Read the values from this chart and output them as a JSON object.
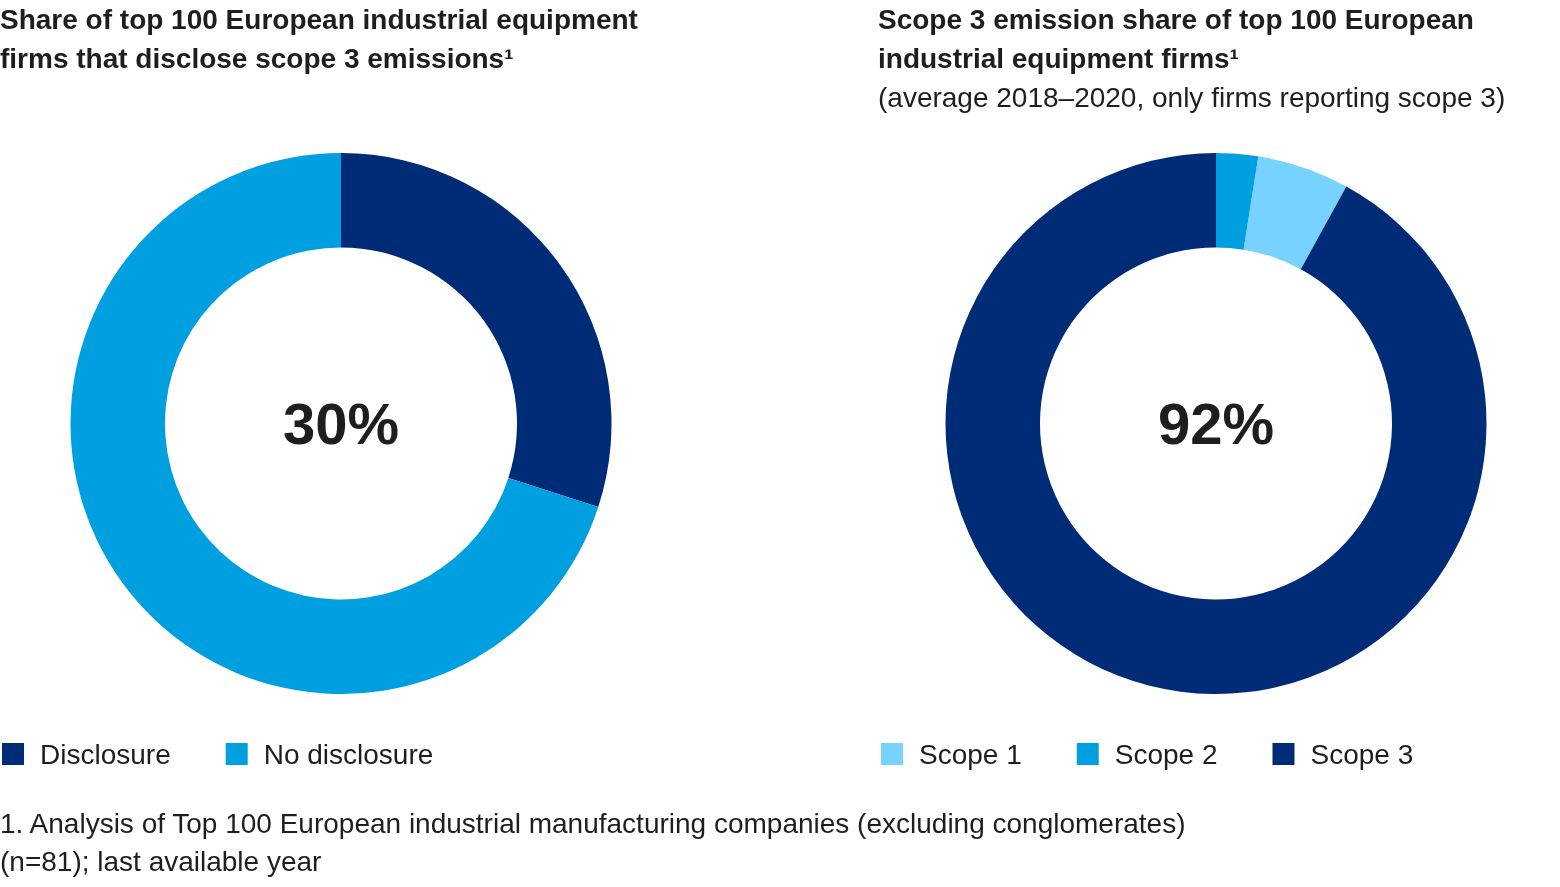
{
  "chart_data": [
    {
      "type": "donut",
      "title": "Share of top 100 European industrial equipment firms that disclose scope 3 emissions¹",
      "categories": [
        "Disclosure",
        "No disclosure"
      ],
      "values": [
        30,
        70
      ],
      "colors": [
        "#002b76",
        "#009fe0"
      ],
      "value_labels": [
        "30%",
        null
      ],
      "legend": "bottom left",
      "annotations": [
        "1. Analysis of Top 100 European industrial manufacturing companies (excluding conglomerates) (n=81); last available year"
      ]
    },
    {
      "type": "donut",
      "title": "Scope 3 emission share of top 100 European industrial equipment firms¹",
      "subtitle": "(average 2018–2020, only firms reporting scope 3)",
      "categories": [
        "Scope 1",
        "Scope 2",
        "Scope 3"
      ],
      "values": [
        5.5,
        2.5,
        92
      ],
      "colors": [
        "#78d2ff",
        "#009fe0",
        "#002b76"
      ],
      "value_labels": [
        null,
        null,
        "92%"
      ],
      "legend": "bottom left"
    }
  ]
}
